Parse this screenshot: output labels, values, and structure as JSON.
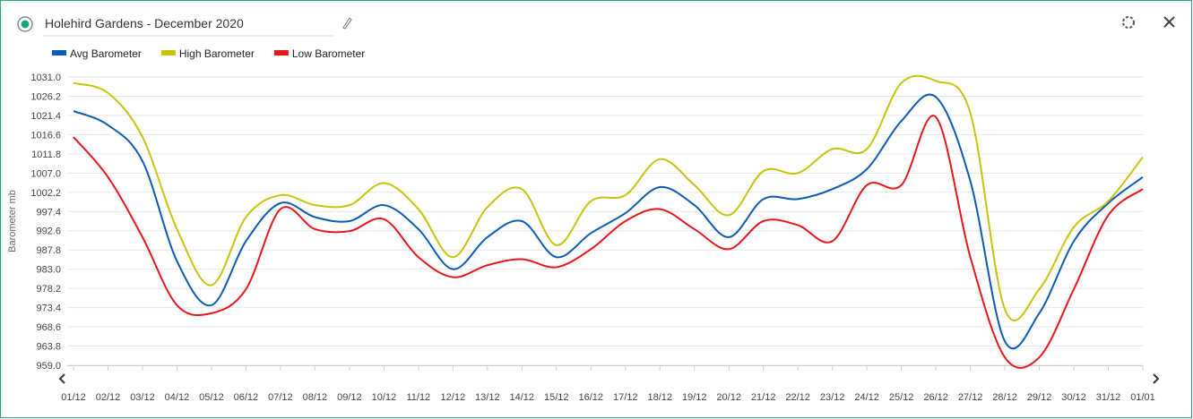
{
  "chart_data": {
    "type": "line",
    "title": "Holehird Gardens - December 2020",
    "y_label": "Barometer mb",
    "categories": [
      "01/12",
      "02/12",
      "03/12",
      "04/12",
      "05/12",
      "06/12",
      "07/12",
      "08/12",
      "09/12",
      "10/12",
      "11/12",
      "12/12",
      "13/12",
      "14/12",
      "15/12",
      "16/12",
      "17/12",
      "18/12",
      "19/12",
      "20/12",
      "21/12",
      "22/12",
      "23/12",
      "24/12",
      "25/12",
      "26/12",
      "27/12",
      "28/12",
      "29/12",
      "30/12",
      "31/12",
      "01/01"
    ],
    "series": [
      {
        "name": "Avg Barometer",
        "color": "#0a5bb5",
        "values": [
          1022.5,
          1019,
          1010,
          985,
          974,
          990,
          999.5,
          996,
          995,
          999,
          993,
          983,
          991,
          995,
          986,
          992,
          997,
          1003.5,
          999,
          991,
          1000.5,
          1000.5,
          1003,
          1008,
          1020,
          1026,
          1005,
          965,
          972,
          990,
          999.5,
          1006
        ]
      },
      {
        "name": "High Barometer",
        "color": "#c8c20a",
        "values": [
          1029.5,
          1027,
          1016,
          993,
          979,
          996,
          1001.5,
          999,
          999,
          1004.5,
          998,
          986,
          998.5,
          1003,
          989,
          1000,
          1001.5,
          1010.5,
          1004,
          996.5,
          1007.5,
          1007,
          1013,
          1013,
          1029.5,
          1030,
          1022,
          973,
          978,
          993.5,
          1000,
          1011
        ]
      },
      {
        "name": "Low Barometer",
        "color": "#e8151b",
        "values": [
          1016,
          1006,
          991,
          974,
          972,
          978,
          998,
          993,
          992.5,
          995.5,
          986,
          981,
          984,
          985.5,
          983.5,
          988,
          995,
          998,
          993,
          988,
          995,
          994,
          990,
          1004,
          1004,
          1021,
          986,
          961,
          961,
          978,
          996.5,
          1003
        ]
      }
    ],
    "ylim": [
      959,
      1031
    ],
    "yticks": [
      {
        "value": 959,
        "label": "959.0"
      },
      963.8,
      968.6,
      973.4,
      978.2,
      {
        "value": 983,
        "label": "983.0"
      },
      987.8,
      992.6,
      997.4,
      1002.2,
      {
        "value": 1007,
        "label": "1007.0"
      },
      1011.8,
      1016.6,
      1021.4,
      1026.2,
      {
        "value": 1031,
        "label": "1031.0"
      }
    ],
    "grid": true
  }
}
